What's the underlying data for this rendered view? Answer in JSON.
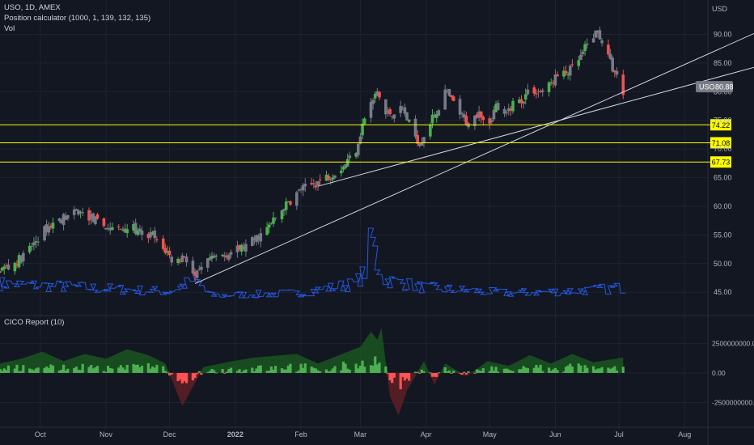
{
  "chart_data": [
    {
      "type": "candlestick",
      "title": "USO, 1D, AMEX",
      "indicators": [
        "Position calculator (1000, 1, 139, 132, 135)",
        "Vol"
      ],
      "currency_label": "USD",
      "y_ticks": [
        "90.00",
        "85.00",
        "80.00",
        "75.00",
        "70.00",
        "65.00",
        "60.00",
        "55.00",
        "50.00",
        "45.00"
      ],
      "y_tick_values": [
        90,
        85,
        80,
        75,
        70,
        65,
        60,
        55,
        50,
        45
      ],
      "ylim": [
        41.5,
        96
      ],
      "x_ticks": [
        "Oct",
        "Nov",
        "Dec",
        "2022",
        "Feb",
        "Mar",
        "Apr",
        "May",
        "Jun",
        "Jul",
        "Aug"
      ],
      "x_tick_days": [
        19,
        50,
        80,
        111,
        142,
        170,
        201,
        231,
        262,
        292,
        323
      ],
      "start_date": "2021-09-13",
      "last_price": {
        "symbol": "USO",
        "value": "80.88",
        "color": "#787b86"
      },
      "horizontal_levels": [
        {
          "value": 74.22,
          "label": "74.22",
          "color": "#ffff00"
        },
        {
          "value": 71.08,
          "label": "71.08",
          "color": "#ffff00"
        },
        {
          "value": 67.73,
          "label": "67.73",
          "color": "#ffff00"
        }
      ],
      "trendlines": [
        {
          "from": [
            92,
            46.5
          ],
          "to": [
            388,
            95.5
          ]
        },
        {
          "from": [
            150,
            63.5
          ],
          "to": [
            383,
            87
          ]
        }
      ],
      "colors": {
        "up": "#26a69a",
        "up_bright": "#4caf50",
        "down": "#ef5350",
        "neutral": "#787b86",
        "volume": "#2962ff"
      },
      "price_anchors": [
        [
          0,
          49
        ],
        [
          5,
          49.5
        ],
        [
          10,
          51
        ],
        [
          15,
          53
        ],
        [
          20,
          55.5
        ],
        [
          25,
          57
        ],
        [
          30,
          58
        ],
        [
          37,
          59
        ],
        [
          43,
          58
        ],
        [
          47,
          57
        ],
        [
          52,
          56
        ],
        [
          57,
          56
        ],
        [
          62,
          56.5
        ],
        [
          67,
          54.5
        ],
        [
          72,
          55
        ],
        [
          75,
          53
        ],
        [
          79,
          52
        ],
        [
          82,
          50
        ],
        [
          87,
          51.5
        ],
        [
          92,
          47.5
        ],
        [
          97,
          50
        ],
        [
          102,
          51
        ],
        [
          109,
          52
        ],
        [
          116,
          53
        ],
        [
          121,
          54.5
        ],
        [
          126,
          56
        ],
        [
          132,
          59
        ],
        [
          137,
          61
        ],
        [
          142,
          63
        ],
        [
          146,
          63.5
        ],
        [
          151,
          64.5
        ],
        [
          156,
          65.5
        ],
        [
          162,
          67
        ],
        [
          168,
          70
        ],
        [
          172,
          75.5
        ],
        [
          178,
          80
        ],
        [
          182,
          76
        ],
        [
          186,
          76.5
        ],
        [
          190,
          77
        ],
        [
          194,
          73.5
        ],
        [
          198,
          71
        ],
        [
          202,
          74
        ],
        [
          206,
          76.5
        ],
        [
          210,
          80
        ],
        [
          214,
          78
        ],
        [
          218,
          75.5
        ],
        [
          222,
          74
        ],
        [
          226,
          77
        ],
        [
          230,
          74
        ],
        [
          234,
          77.5
        ],
        [
          238,
          75.5
        ],
        [
          242,
          78
        ],
        [
          246,
          78.5
        ],
        [
          250,
          80.5
        ],
        [
          254,
          80
        ],
        [
          258,
          80.5
        ],
        [
          262,
          82.5
        ],
        [
          266,
          83
        ],
        [
          270,
          84
        ],
        [
          274,
          86
        ],
        [
          278,
          89
        ],
        [
          282,
          90.5
        ],
        [
          285,
          88
        ],
        [
          288,
          85
        ],
        [
          291,
          82.5
        ],
        [
          294,
          80
        ]
      ],
      "volume_anchors": [
        [
          0,
          0.3
        ],
        [
          40,
          0.25
        ],
        [
          80,
          0.2
        ],
        [
          92,
          0.35
        ],
        [
          100,
          0.15
        ],
        [
          140,
          0.18
        ],
        [
          168,
          0.3
        ],
        [
          172,
          0.45
        ],
        [
          175,
          1.0
        ],
        [
          178,
          0.55
        ],
        [
          182,
          0.35
        ],
        [
          200,
          0.25
        ],
        [
          240,
          0.18
        ],
        [
          280,
          0.22
        ],
        [
          294,
          0.25
        ]
      ]
    },
    {
      "type": "histogram",
      "title": "CICO Report (10)",
      "y_ticks": [
        "2500000000.00",
        "0.00",
        "-2500000000.00"
      ],
      "y_tick_values": [
        2500000000,
        0,
        -2500000000
      ],
      "ylim": [
        -3900000000,
        4300000000
      ],
      "colors": {
        "pos": "#4caf50",
        "neg": "#ff5252",
        "area_pos": "#1b5e20",
        "area_neg": "#5e1f24"
      },
      "area_anchors": [
        [
          0,
          0.8
        ],
        [
          10,
          1.2
        ],
        [
          20,
          1.8
        ],
        [
          30,
          1.0
        ],
        [
          40,
          1.6
        ],
        [
          50,
          1.2
        ],
        [
          60,
          2.0
        ],
        [
          70,
          1.5
        ],
        [
          78,
          0.8
        ],
        [
          82,
          -1.0
        ],
        [
          86,
          -2.8
        ],
        [
          90,
          -1.5
        ],
        [
          96,
          0.5
        ],
        [
          110,
          1.0
        ],
        [
          120,
          1.3
        ],
        [
          140,
          1.6
        ],
        [
          150,
          0.8
        ],
        [
          160,
          1.5
        ],
        [
          170,
          2.2
        ],
        [
          175,
          3.5
        ],
        [
          178,
          2.8
        ],
        [
          180,
          3.8
        ],
        [
          184,
          -2.0
        ],
        [
          188,
          -3.6
        ],
        [
          192,
          -1.5
        ],
        [
          200,
          1.0
        ],
        [
          205,
          -1.0
        ],
        [
          210,
          0.8
        ],
        [
          220,
          -0.3
        ],
        [
          230,
          1.0
        ],
        [
          240,
          0.6
        ],
        [
          250,
          1.5
        ],
        [
          260,
          0.8
        ],
        [
          270,
          1.6
        ],
        [
          280,
          0.9
        ],
        [
          294,
          1.3
        ]
      ]
    }
  ]
}
